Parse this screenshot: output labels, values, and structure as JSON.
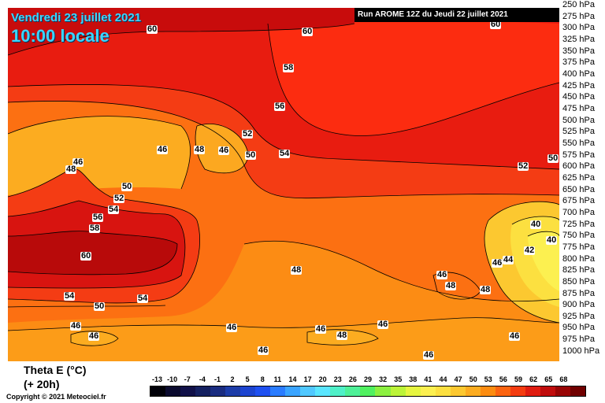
{
  "header": {
    "date": "Vendredi 23 juillet 2021",
    "time": "10:00 locale",
    "run": "Run AROME 12Z du Jeudi 22 juillet 2021"
  },
  "footer": {
    "variable": "Theta E (°C)",
    "lead": "(+ 20h)",
    "copyright": "Copyright © 2021 Meteociel.fr"
  },
  "chart_data": {
    "type": "heatmap",
    "y_axis_labels": [
      "250 hPa",
      "275 hPa",
      "300 hPa",
      "325 hPa",
      "350 hPa",
      "375 hPa",
      "400 hPa",
      "425 hPa",
      "450 hPa",
      "475 hPa",
      "500 hPa",
      "525 hPa",
      "550 hPa",
      "575 hPa",
      "600 hPa",
      "625 hPa",
      "650 hPa",
      "675 hPa",
      "700 hPa",
      "725 hPa",
      "750 hPa",
      "775 hPa",
      "800 hPa",
      "825 hPa",
      "850 hPa",
      "875 hPa",
      "900 hPa",
      "925 hPa",
      "950 hPa",
      "975 hPa",
      "1000 hPa"
    ],
    "contour_labels": [
      "60",
      "60",
      "60",
      "58",
      "56",
      "52",
      "54",
      "50",
      "46",
      "48",
      "46",
      "46",
      "48",
      "50",
      "52",
      "54",
      "56",
      "58",
      "60",
      "52",
      "50",
      "40",
      "40",
      "42",
      "44",
      "46",
      "48",
      "46",
      "48",
      "48",
      "54",
      "50",
      "54",
      "46",
      "46",
      "46",
      "46",
      "46",
      "48",
      "46",
      "46",
      "46"
    ],
    "colorbar": {
      "ticks": [
        "-13",
        "-10",
        "-7",
        "-4",
        "-1",
        "2",
        "5",
        "8",
        "11",
        "14",
        "17",
        "20",
        "23",
        "26",
        "29",
        "32",
        "35",
        "38",
        "41",
        "44",
        "47",
        "50",
        "53",
        "56",
        "59",
        "62",
        "65",
        "68"
      ],
      "colors": [
        "#000008",
        "#0a0a2e",
        "#101048",
        "#142060",
        "#1a2c80",
        "#1c3ca8",
        "#1c44d0",
        "#1e50f0",
        "#2a7cff",
        "#3aa4ff",
        "#50c8ff",
        "#5ae6ff",
        "#4ff0c8",
        "#4ef098",
        "#50f060",
        "#8cf040",
        "#bcf438",
        "#e6f640",
        "#fcf050",
        "#fce040",
        "#fcc830",
        "#fcac20",
        "#fc8c10",
        "#fc6410",
        "#f43c10",
        "#e01c10",
        "#c00c0c",
        "#980404",
        "#700000"
      ]
    }
  }
}
